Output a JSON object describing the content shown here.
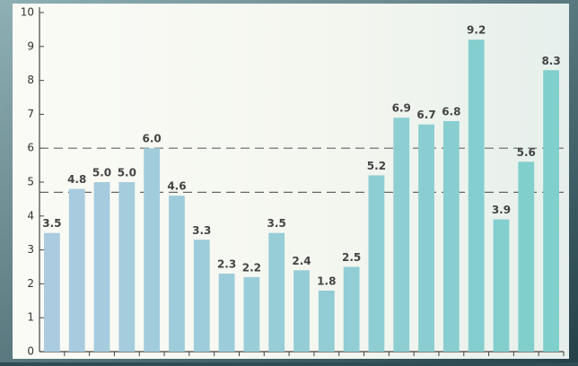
{
  "chart_data": {
    "type": "bar",
    "values": [
      3.5,
      4.8,
      5.0,
      5.0,
      6.0,
      4.6,
      3.3,
      2.3,
      2.2,
      3.5,
      2.4,
      1.8,
      2.5,
      5.2,
      6.9,
      6.7,
      6.8,
      9.2,
      3.9,
      5.6,
      8.3
    ],
    "value_labels": [
      "3.5",
      "4.8",
      "5.0",
      "5.0",
      "6.0",
      "4.6",
      "3.3",
      "2.3",
      "2.2",
      "3.5",
      "2.4",
      "1.8",
      "2.5",
      "5.2",
      "6.9",
      "6.7",
      "6.8",
      "9.2",
      "3.9",
      "5.6",
      "8.3"
    ],
    "color": "#aacbe0",
    "color_end": "#7fcfcc",
    "reference_lines": [
      4.7,
      6.0
    ],
    "ylim": [
      0,
      10
    ],
    "yticks": [
      0,
      1,
      2,
      3,
      4,
      5,
      6,
      7,
      8,
      9,
      10
    ]
  }
}
